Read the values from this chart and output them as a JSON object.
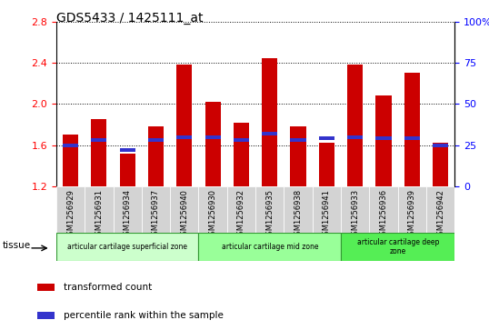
{
  "title": "GDS5433 / 1425111_at",
  "samples": [
    "GSM1256929",
    "GSM1256931",
    "GSM1256934",
    "GSM1256937",
    "GSM1256940",
    "GSM1256930",
    "GSM1256932",
    "GSM1256935",
    "GSM1256938",
    "GSM1256941",
    "GSM1256933",
    "GSM1256936",
    "GSM1256939",
    "GSM1256942"
  ],
  "transformed_count": [
    1.7,
    1.85,
    1.52,
    1.78,
    2.38,
    2.02,
    1.82,
    2.44,
    1.78,
    1.62,
    2.38,
    2.08,
    2.3,
    1.62
  ],
  "percentile_rank_pct": [
    25,
    28,
    22,
    28,
    30,
    30,
    28,
    32,
    28,
    29,
    30,
    29,
    29,
    25
  ],
  "ylim_left": [
    1.2,
    2.8
  ],
  "ylim_right": [
    0,
    100
  ],
  "yticks_left": [
    1.2,
    1.6,
    2.0,
    2.4,
    2.8
  ],
  "yticks_right": [
    0,
    25,
    50,
    75,
    100
  ],
  "bar_color": "#cc0000",
  "marker_color": "#3333cc",
  "cell_bg": "#d3d3d3",
  "plot_bg": "#ffffff",
  "groups": [
    {
      "label": "articular cartilage superficial zone",
      "start": 0,
      "end": 4,
      "color": "#ccffcc"
    },
    {
      "label": "articular cartilage mid zone",
      "start": 5,
      "end": 9,
      "color": "#99ff99"
    },
    {
      "label": "articular cartilage deep\nzone",
      "start": 10,
      "end": 13,
      "color": "#55ee55"
    }
  ],
  "tissue_label": "tissue",
  "legend_items": [
    {
      "label": "transformed count",
      "color": "#cc0000"
    },
    {
      "label": "percentile rank within the sample",
      "color": "#3333cc"
    }
  ]
}
